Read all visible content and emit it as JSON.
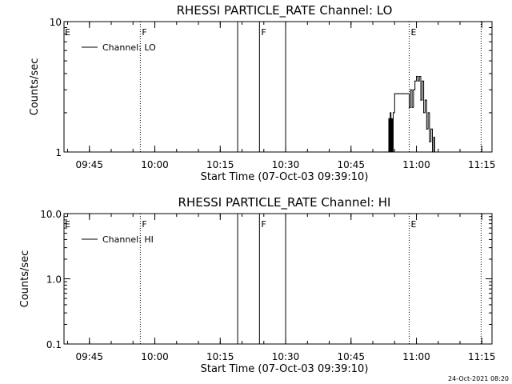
{
  "footer": "24-Oct-2021 08:20",
  "chart_data": [
    {
      "type": "line",
      "title": "RHESSI PARTICLE_RATE Channel: LO",
      "xlabel": "Start Time (07-Oct-03 09:39:10)",
      "ylabel": "Counts/sec",
      "y_scale": "log",
      "ylim": [
        1,
        10
      ],
      "y_ticks": [
        "10",
        "1"
      ],
      "x_ticks": [
        "09:45",
        "10:00",
        "10:15",
        "10:30",
        "10:45",
        "11:00",
        "11:15"
      ],
      "legend": "top-left",
      "series": [
        {
          "name": "Channel: LO",
          "x": [
            "10:53:30",
            "10:53:40",
            "10:53:50",
            "10:54:00",
            "10:54:10",
            "10:54:20",
            "10:54:30",
            "10:54:40",
            "10:55:00",
            "10:55:30",
            "10:56:00",
            "10:56:30",
            "10:57:00",
            "10:57:30",
            "10:58:00",
            "10:58:20",
            "10:58:40",
            "10:59:00",
            "10:59:20",
            "10:59:40",
            "11:00:00",
            "11:00:20",
            "11:00:40",
            "11:01:00",
            "11:01:20",
            "11:01:40",
            "11:02:00",
            "11:02:20",
            "11:02:40",
            "11:03:00",
            "11:03:20",
            "11:03:40",
            "11:04:00",
            "11:04:10"
          ],
          "y": [
            1,
            1.8,
            1,
            2,
            1,
            1.8,
            1,
            2,
            2.8,
            2.8,
            2.8,
            2.8,
            2.8,
            2.8,
            2.8,
            2.2,
            3,
            2.2,
            3,
            3.5,
            3.8,
            3.5,
            3.8,
            2.5,
            3.5,
            2,
            2.5,
            1.5,
            2,
            1.2,
            1.5,
            1,
            1.3,
            1
          ]
        }
      ],
      "vlines": [
        {
          "time": "09:56:40",
          "style": "dotted",
          "label": "F"
        },
        {
          "time": "10:19:00",
          "style": "solid",
          "label": ""
        },
        {
          "time": "10:24:00",
          "style": "solid",
          "label": "F"
        },
        {
          "time": "10:30:00",
          "style": "solid",
          "label": ""
        },
        {
          "time": "10:58:20",
          "style": "dotted",
          "label": "E"
        },
        {
          "time": "11:14:50",
          "style": "dotted",
          "label": ""
        }
      ],
      "left_edge_label": "E"
    },
    {
      "type": "line",
      "title": "RHESSI PARTICLE_RATE Channel: HI",
      "xlabel": "Start Time (07-Oct-03 09:39:10)",
      "ylabel": "Counts/sec",
      "y_scale": "log",
      "ylim": [
        0.1,
        10
      ],
      "y_ticks": [
        "10.0",
        "1.0",
        "0.1"
      ],
      "x_ticks": [
        "09:45",
        "10:00",
        "10:15",
        "10:30",
        "10:45",
        "11:00",
        "11:15"
      ],
      "legend": "top-left",
      "series": [
        {
          "name": "Channel: HI",
          "x": [],
          "y": []
        }
      ],
      "vlines": [
        {
          "time": "09:56:40",
          "style": "dotted",
          "label": "F"
        },
        {
          "time": "10:19:00",
          "style": "solid",
          "label": ""
        },
        {
          "time": "10:24:00",
          "style": "solid",
          "label": "F"
        },
        {
          "time": "10:30:00",
          "style": "solid",
          "label": ""
        },
        {
          "time": "10:58:20",
          "style": "dotted",
          "label": "E"
        },
        {
          "time": "11:14:50",
          "style": "dotted",
          "label": ""
        }
      ],
      "left_edge_label": "E"
    }
  ]
}
